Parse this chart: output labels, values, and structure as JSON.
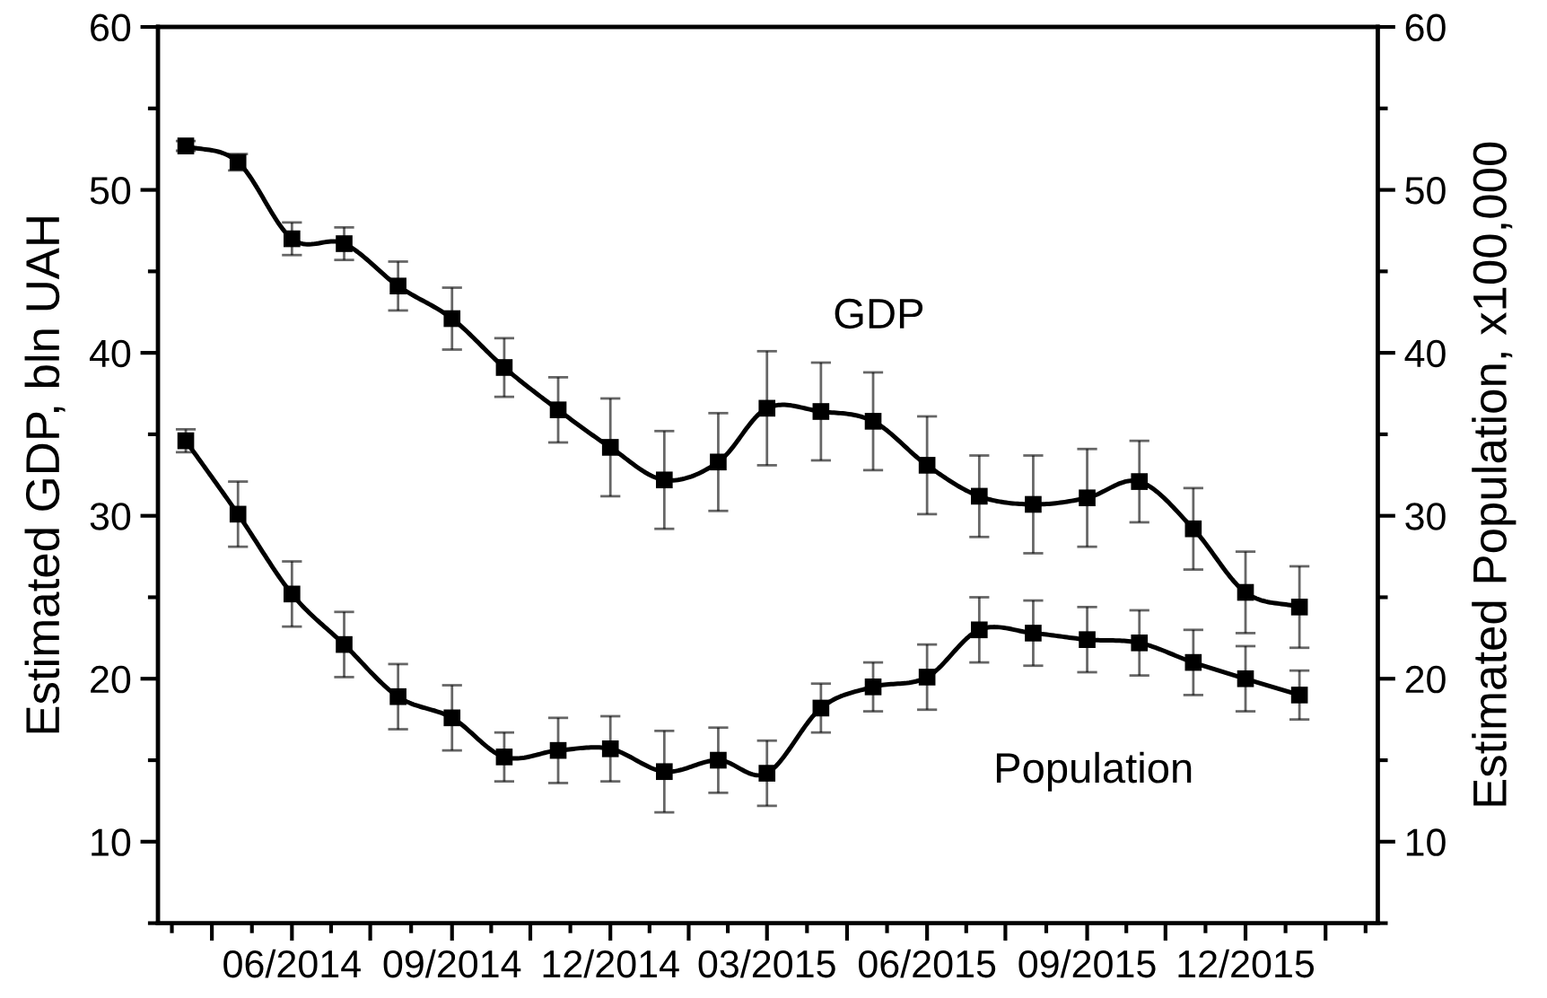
{
  "chart_data": {
    "type": "line",
    "x": [
      "2014-04",
      "2014-05",
      "2014-06",
      "2014-07",
      "2014-08",
      "2014-09",
      "2014-10",
      "2014-11",
      "2014-12",
      "2015-01",
      "2015-02",
      "2015-03",
      "2015-04",
      "2015-05",
      "2015-06",
      "2015-07",
      "2015-08",
      "2015-09",
      "2015-10",
      "2015-11",
      "2015-12",
      "2016-01"
    ],
    "series": [
      {
        "name": "GDP",
        "color": "#000000",
        "values": [
          52.7,
          51.7,
          47.0,
          46.7,
          44.1,
          42.1,
          39.1,
          36.5,
          34.2,
          32.2,
          33.3,
          36.6,
          36.4,
          35.8,
          33.1,
          31.2,
          30.7,
          31.1,
          32.1,
          29.2,
          25.3,
          24.4
        ],
        "errors": [
          0.3,
          0.5,
          1.0,
          1.0,
          1.5,
          1.9,
          1.8,
          2.0,
          3.0,
          3.0,
          3.0,
          3.5,
          3.0,
          3.0,
          3.0,
          2.5,
          3.0,
          3.0,
          2.5,
          2.5,
          2.5,
          2.5
        ]
      },
      {
        "name": "Population",
        "color": "#000000",
        "axis": "y2",
        "values": [
          34.6,
          30.1,
          25.2,
          22.1,
          18.9,
          17.6,
          15.2,
          15.6,
          15.7,
          14.3,
          15.0,
          14.2,
          18.2,
          19.5,
          20.1,
          23.0,
          22.8,
          22.4,
          22.2,
          21.0,
          20.0,
          19.0
        ],
        "errors": [
          0.7,
          2.0,
          2.0,
          2.0,
          2.0,
          2.0,
          1.5,
          2.0,
          2.0,
          2.5,
          2.0,
          2.0,
          1.5,
          1.5,
          2.0,
          2.0,
          2.0,
          2.0,
          2.0,
          2.0,
          2.0,
          1.5
        ]
      }
    ],
    "ylabel": "Estimated GDP, bln UAH",
    "y2label": "Estimated Population, x100,000",
    "xlim": [
      "2014-03-16",
      "2016-02-15"
    ],
    "xticks": [
      {
        "value": "2014-04-16",
        "label": null
      },
      {
        "value": "2014-06-01",
        "label": "06/2014"
      },
      {
        "value": "2014-07-16",
        "label": null
      },
      {
        "value": "2014-09-01",
        "label": "09/2014"
      },
      {
        "value": "2014-10-16",
        "label": null
      },
      {
        "value": "2014-12-01",
        "label": "12/2014"
      },
      {
        "value": "2015-01-15",
        "label": null
      },
      {
        "value": "2015-03-01",
        "label": "03/2015"
      },
      {
        "value": "2015-04-16",
        "label": null
      },
      {
        "value": "2015-06-01",
        "label": "06/2015"
      },
      {
        "value": "2015-07-16",
        "label": null
      },
      {
        "value": "2015-09-01",
        "label": "09/2015"
      },
      {
        "value": "2015-10-16",
        "label": null
      },
      {
        "value": "2015-12-01",
        "label": "12/2015"
      },
      {
        "value": "2016-01-16",
        "label": null
      }
    ],
    "ylim": [
      5,
      60
    ],
    "yticks": [
      10,
      20,
      30,
      40,
      50,
      60
    ],
    "y2lim": [
      5,
      60
    ],
    "y2ticks": [
      10,
      20,
      30,
      40,
      50,
      60
    ],
    "marker": "square",
    "line_style": "solid"
  }
}
